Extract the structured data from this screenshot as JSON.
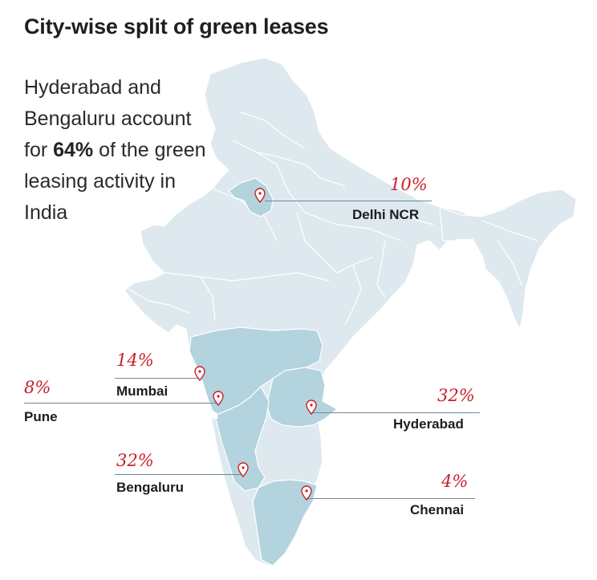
{
  "title": "City-wise split of green leases",
  "headline": {
    "pre": "Hyderabad and Bengaluru account for ",
    "bold": "64%",
    "post": " of the green leasing activity in India"
  },
  "cities": [
    {
      "id": "delhi",
      "name": "Delhi NCR",
      "share": "10%"
    },
    {
      "id": "mumbai",
      "name": "Mumbai",
      "share": "14%"
    },
    {
      "id": "pune",
      "name": "Pune",
      "share": "8%"
    },
    {
      "id": "hyderabad",
      "name": "Hyderabad",
      "share": "32%"
    },
    {
      "id": "bengaluru",
      "name": "Bengaluru",
      "share": "32%"
    },
    {
      "id": "chennai",
      "name": "Chennai",
      "share": "4%"
    }
  ],
  "colors": {
    "map_fill": "#dde9ef",
    "highlight_fill": "#b3d3de",
    "state_border": "#ffffff",
    "marker": "#c8202a",
    "leader_line": "#6f8a99"
  }
}
